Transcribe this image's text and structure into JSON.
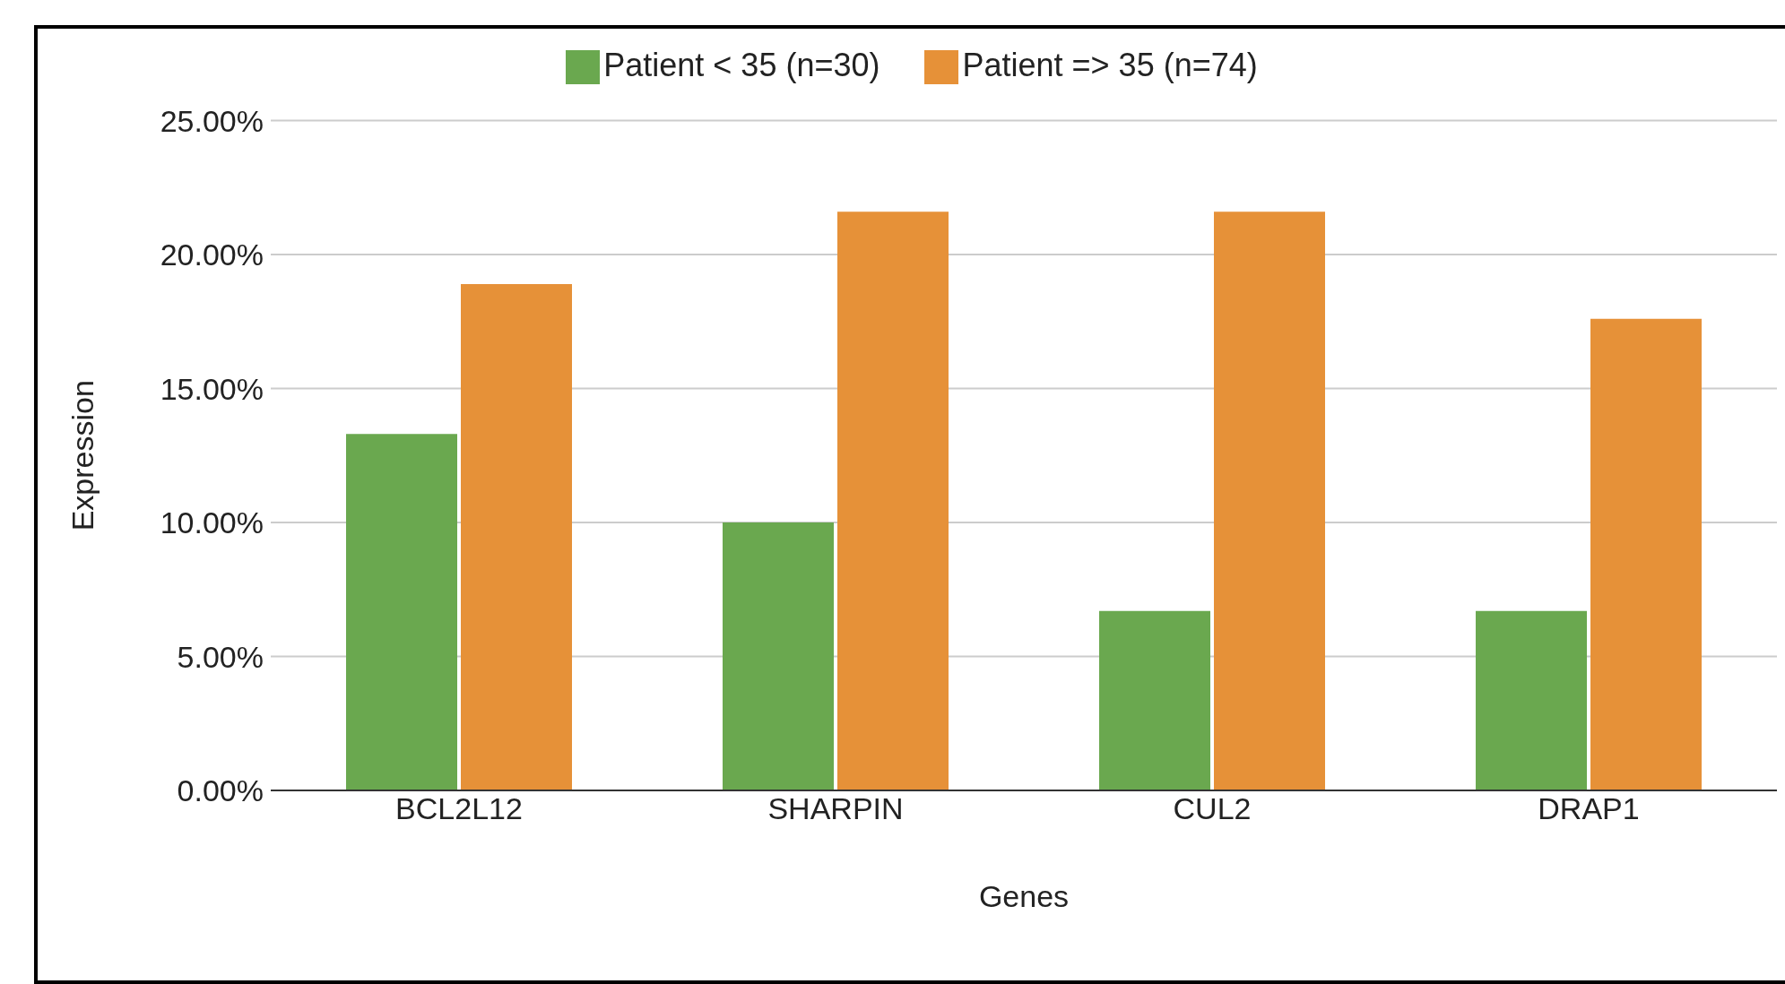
{
  "chart_data": {
    "type": "bar",
    "xlabel": "Genes",
    "ylabel": "Expression",
    "categories": [
      "BCL2L12",
      "SHARPIN",
      "CUL2",
      "DRAP1"
    ],
    "series": [
      {
        "name": "Patient < 35 (n=30)",
        "color": "#6aa84f",
        "values": [
          13.3,
          10.0,
          6.7,
          6.7
        ]
      },
      {
        "name": "Patient => 35 (n=74)",
        "color": "#e69138",
        "values": [
          18.9,
          21.6,
          21.6,
          17.6
        ]
      }
    ],
    "ylim": [
      0,
      25
    ],
    "yticks": [
      {
        "value": 0,
        "label": "0.00%"
      },
      {
        "value": 5,
        "label": "5.00%"
      },
      {
        "value": 10,
        "label": "10.00%"
      },
      {
        "value": 15,
        "label": "15.00%"
      },
      {
        "value": 20,
        "label": "20.00%"
      },
      {
        "value": 25,
        "label": "25.00%"
      }
    ],
    "grid": "y",
    "legend": "top"
  }
}
